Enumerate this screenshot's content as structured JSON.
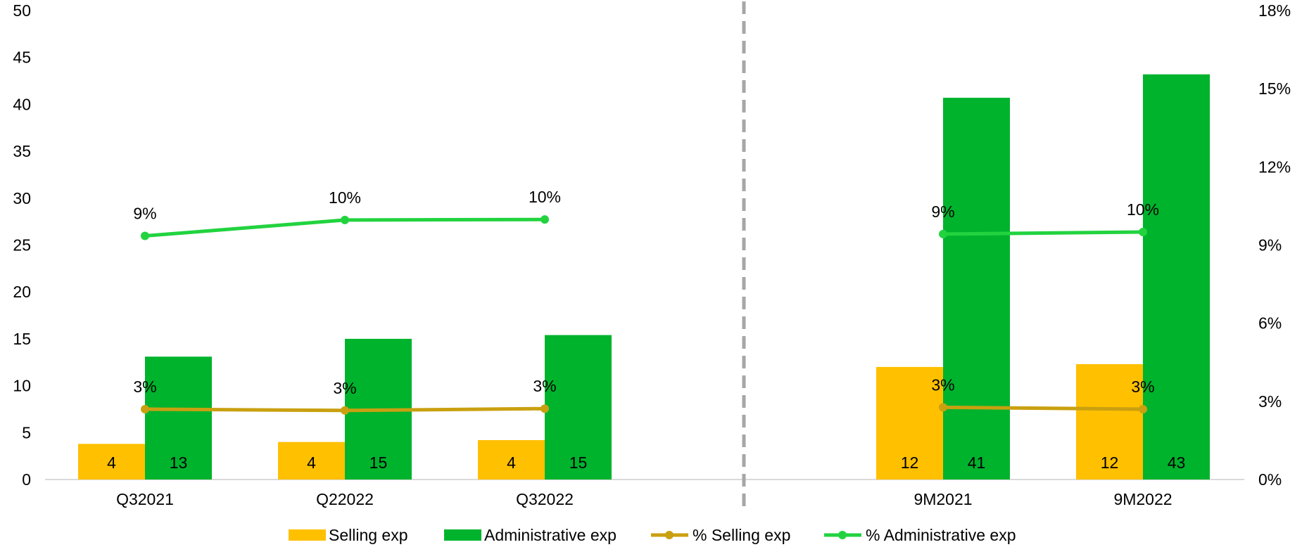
{
  "chart_data": {
    "type": "bar",
    "categories": [
      "Q32021",
      "Q22022",
      "Q32022",
      "9M2021",
      "9M2022"
    ],
    "series": [
      {
        "name": "Selling exp",
        "kind": "bar",
        "axis": "left",
        "color": "#FFC000",
        "values": [
          3.8,
          4.0,
          4.2,
          12.0,
          12.3
        ],
        "labels": [
          "4",
          "4",
          "4",
          "12",
          "12"
        ]
      },
      {
        "name": "Administrative exp",
        "kind": "bar",
        "axis": "left",
        "color": "#00B32D",
        "values": [
          13.1,
          15.0,
          15.4,
          40.7,
          43.2
        ],
        "labels": [
          "13",
          "15",
          "15",
          "41",
          "43"
        ]
      },
      {
        "name": "% Selling exp",
        "kind": "line",
        "axis": "right",
        "color": "#C9A010",
        "values": [
          2.7,
          2.65,
          2.72,
          2.77,
          2.7
        ],
        "labels": [
          "3%",
          "3%",
          "3%",
          "3%",
          "3%"
        ]
      },
      {
        "name": "% Administrative exp",
        "kind": "line",
        "axis": "right",
        "color": "#22D33F",
        "values": [
          9.35,
          9.96,
          9.98,
          9.42,
          9.5
        ],
        "labels": [
          "9%",
          "10%",
          "10%",
          "9%",
          "10%"
        ]
      }
    ],
    "left_axis": {
      "min": 0,
      "max": 50,
      "ticks": [
        "0",
        "5",
        "10",
        "15",
        "20",
        "25",
        "30",
        "35",
        "40",
        "45",
        "50"
      ]
    },
    "right_axis": {
      "min": 0,
      "max": 18,
      "ticks": [
        "0%",
        "3%",
        "6%",
        "9%",
        "12%",
        "15%",
        "18%"
      ]
    },
    "separator": "dashed-vertical-between-Q32022-and-9M2021",
    "legend_position": "bottom-center",
    "grid": false
  }
}
